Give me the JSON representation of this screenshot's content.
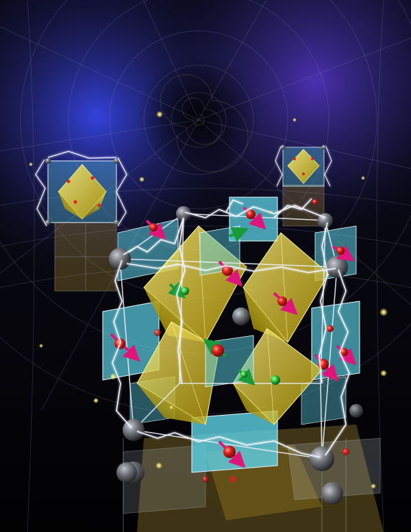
{
  "scene": {
    "subject": "crystal-lattice-illustration",
    "colors": {
      "background_top": "#0b0a1f",
      "background_bottom": "#020203",
      "nebula_blue": "#3b4cff",
      "nebula_violet": "#5a3bd6",
      "octahedron_yellow": "#e8d20f",
      "plane_cyan": "#5cd2e6",
      "atom_red": "#e0201a",
      "atom_gray": "#6f7278",
      "atom_green": "#28c23a",
      "spin_arrow_magenta": "#e0157a",
      "spin_arrow_green": "#1a9a3a",
      "lightning": "#f2f4ff",
      "spark_yellow": "#f8e86a"
    },
    "icons": [
      "atom-sphere-icon",
      "spin-arrow-icon",
      "lightning-arc-icon"
    ]
  }
}
